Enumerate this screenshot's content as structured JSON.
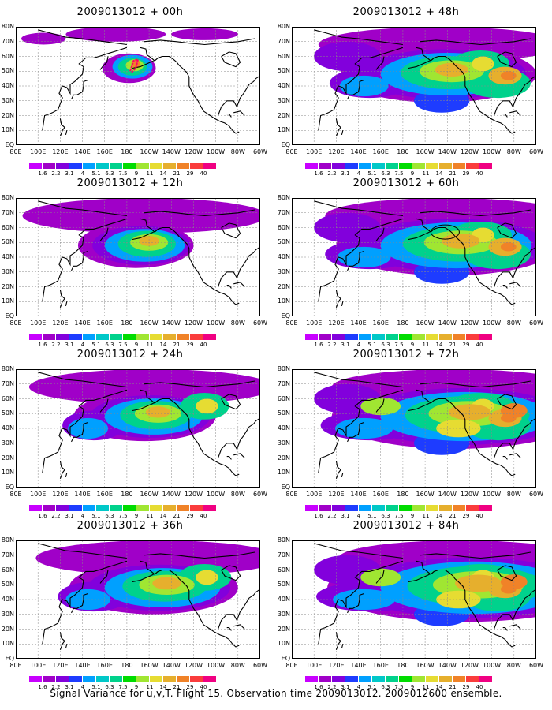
{
  "panels": [
    {
      "title": "2009013012 + 00h",
      "stage": 0
    },
    {
      "title": "2009013012 + 48h",
      "stage": 4
    },
    {
      "title": "2009013012 + 12h",
      "stage": 1
    },
    {
      "title": "2009013012 + 60h",
      "stage": 5
    },
    {
      "title": "2009013012 + 24h",
      "stage": 2
    },
    {
      "title": "2009013012 + 72h",
      "stage": 6
    },
    {
      "title": "2009013012 + 36h",
      "stage": 3
    },
    {
      "title": "2009013012 + 84h",
      "stage": 7
    }
  ],
  "latitude_labels": [
    "80N",
    "70N",
    "60N",
    "50N",
    "40N",
    "30N",
    "20N",
    "10N",
    "EQ"
  ],
  "longitude_labels": [
    "80E",
    "100E",
    "120E",
    "140E",
    "160E",
    "180",
    "160W",
    "140W",
    "120W",
    "100W",
    "80W",
    "60W"
  ],
  "colorbar": {
    "levels": [
      "1.6",
      "2.2",
      "3.1",
      "4",
      "5.1",
      "6.3",
      "7.5",
      "9",
      "11",
      "14",
      "21",
      "29",
      "40"
    ],
    "colors": [
      "#a000c8",
      "#8200dc",
      "#1e3cff",
      "#00a0ff",
      "#00c8c8",
      "#00d28c",
      "#00dc00",
      "#a0e632",
      "#e6dc32",
      "#e6af2d",
      "#f08228",
      "#fa3c3c",
      "#f00082"
    ]
  },
  "footer": "Signal Variance for u,v,T. Flight 15. Observation time 2009013012. 2009012600 ensemble."
}
